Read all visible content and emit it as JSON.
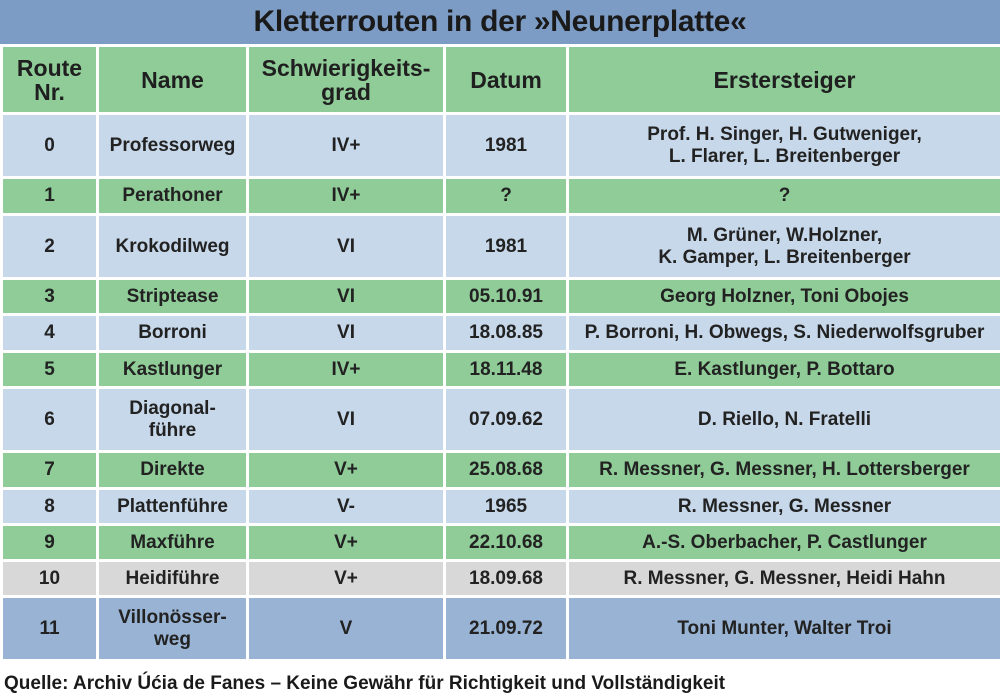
{
  "title": "Kletterrouten in der »Neunerplatte«",
  "headers": [
    "Route Nr.",
    "Name",
    "Schwierigkeits-grad",
    "Datum",
    "Erstersteiger"
  ],
  "rows": [
    {
      "nr": "0",
      "name": "Professorweg",
      "grad": "IV+",
      "datum": "1981",
      "steiger_lines": [
        "Prof. H. Singer, H. Gutweniger,",
        "L. Flarer, L. Breitenberger"
      ],
      "color": "light"
    },
    {
      "nr": "1",
      "name": "Perathoner",
      "grad": "IV+",
      "datum": "?",
      "steiger_lines": [
        "?"
      ],
      "color": "green"
    },
    {
      "nr": "2",
      "name": "Krokodilweg",
      "grad": "VI",
      "datum": "1981",
      "steiger_lines": [
        "M. Grüner, W.Holzner,",
        "K. Gamper, L. Breitenberger"
      ],
      "color": "light"
    },
    {
      "nr": "3",
      "name": "Striptease",
      "grad": "VI",
      "datum": "05.10.91",
      "steiger_lines": [
        "Georg Holzner, Toni Obojes"
      ],
      "color": "green"
    },
    {
      "nr": "4",
      "name": "Borroni",
      "grad": "VI",
      "datum": "18.08.85",
      "steiger_lines": [
        "P. Borroni, H. Obwegs, S. Niederwolfsgruber"
      ],
      "color": "light"
    },
    {
      "nr": "5",
      "name": "Kastlunger",
      "grad": "IV+",
      "datum": "18.11.48",
      "steiger_lines": [
        "E. Kastlunger, P. Bottaro"
      ],
      "color": "green"
    },
    {
      "nr": "6",
      "name_lines": [
        "Diagonal-",
        "führe"
      ],
      "grad": "VI",
      "datum": "07.09.62",
      "steiger_lines": [
        "D. Riello, N. Fratelli"
      ],
      "color": "light"
    },
    {
      "nr": "7",
      "name": "Direkte",
      "grad": "V+",
      "datum": "25.08.68",
      "steiger_lines": [
        "R. Messner, G. Messner, H. Lottersberger"
      ],
      "color": "green"
    },
    {
      "nr": "8",
      "name": "Plattenführe",
      "grad": "V-",
      "datum": "1965",
      "steiger_lines": [
        "R. Messner, G. Messner"
      ],
      "color": "light"
    },
    {
      "nr": "9",
      "name": "Maxführe",
      "grad": "V+",
      "datum": "22.10.68",
      "steiger_lines": [
        "A.-S. Oberbacher, P. Castlunger"
      ],
      "color": "green"
    },
    {
      "nr": "10",
      "name": "Heidiführe",
      "grad": "V+",
      "datum": "18.09.68",
      "steiger_lines": [
        "R. Messner, G. Messner, Heidi Hahn"
      ],
      "color": "grey"
    },
    {
      "nr": "11",
      "name_lines": [
        "Villonösser-",
        "weg"
      ],
      "grad": "V",
      "datum": "21.09.72",
      "steiger_lines": [
        "Toni Munter, Walter Troi"
      ],
      "color": "blue"
    }
  ],
  "source": "Quelle: Archiv Úćia de Fanes – Keine Gewähr für Richtigkeit und Vollständigkeit"
}
